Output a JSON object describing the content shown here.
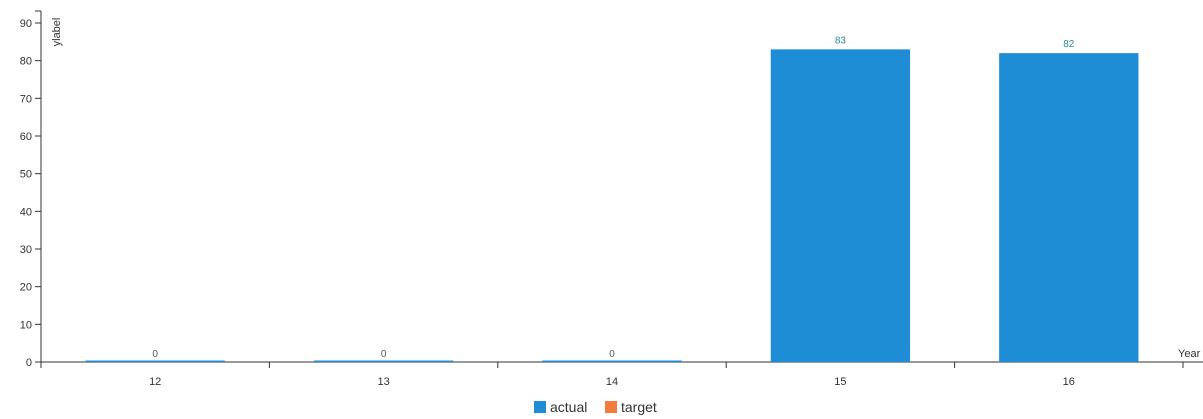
{
  "chart_data": {
    "type": "bar",
    "categories": [
      "12",
      "13",
      "14",
      "15",
      "16"
    ],
    "series": [
      {
        "name": "actual",
        "values": [
          0,
          0,
          0,
          83,
          82
        ],
        "color": "#1f8dd6"
      },
      {
        "name": "target",
        "values": [
          null,
          null,
          null,
          null,
          null
        ],
        "color": "#f47c3c"
      }
    ],
    "data_labels": [
      "0",
      "0",
      "0",
      "83",
      "82"
    ],
    "xlabel": "Year",
    "ylabel": "ylabel",
    "ylim": [
      0,
      90
    ],
    "yticks": [
      0,
      10,
      20,
      30,
      40,
      50,
      60,
      70,
      80,
      90
    ],
    "grid": false,
    "legend_position": "bottom-center"
  }
}
